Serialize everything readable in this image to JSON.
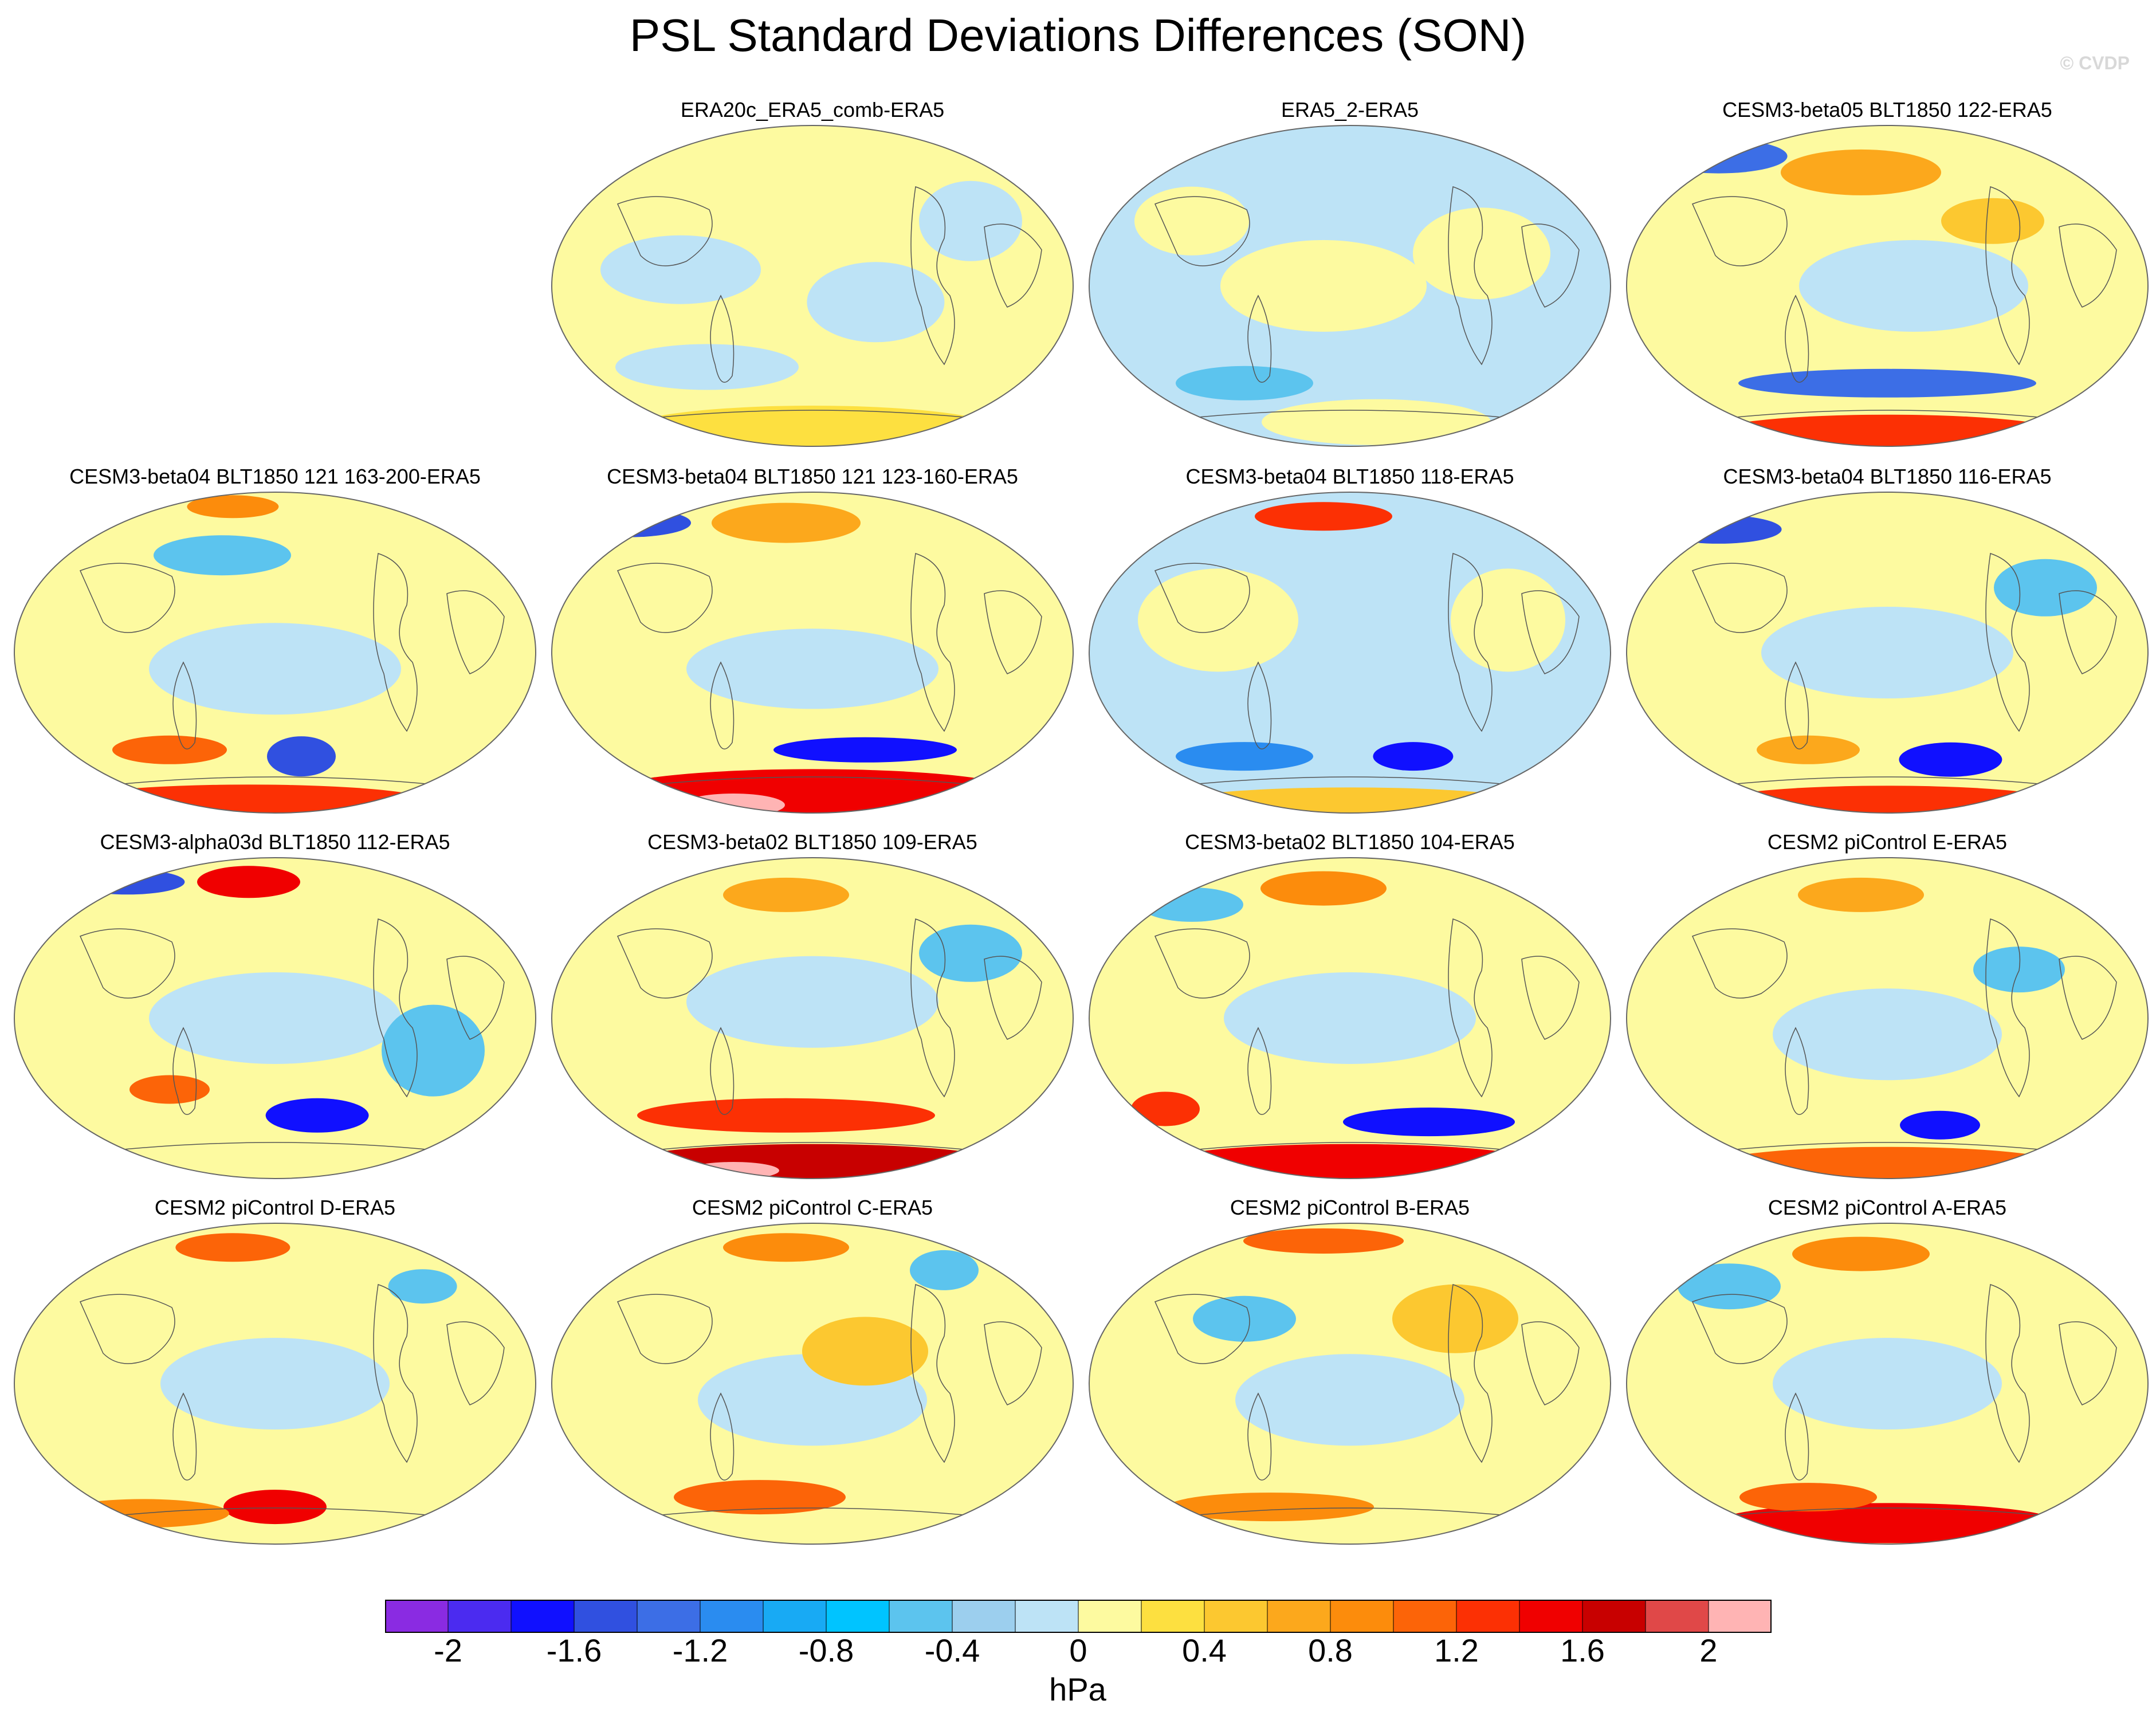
{
  "title": "PSL Standard Deviations Differences (SON)",
  "credit": "© CVDP",
  "colorbar": {
    "units": "hPa",
    "tick_labels": [
      "-2",
      "-1.6",
      "-1.2",
      "-0.8",
      "-0.4",
      "0",
      "0.4",
      "0.8",
      "1.2",
      "1.6",
      "2"
    ],
    "colors": [
      "#8a2be2",
      "#4b2bf0",
      "#1010ff",
      "#3050e0",
      "#3c6ee6",
      "#2a8cf0",
      "#18aaf4",
      "#00c4ff",
      "#5cc4ee",
      "#9ccfee",
      "#bde3f6",
      "#fdfaa0",
      "#fde040",
      "#fcc830",
      "#fca81c",
      "#fc8c0c",
      "#fc6408",
      "#fc3004",
      "#f00000",
      "#c80000",
      "#e04848",
      "#ffb4b4"
    ]
  },
  "panels": [
    {
      "title": "ERA20c_ERA5_comb-ERA5",
      "style": "era20c"
    },
    {
      "title": "ERA5_2-ERA5",
      "style": "era5"
    },
    {
      "title": "CESM3-beta05 BLT1850 122-ERA5",
      "style": "b122"
    },
    {
      "title": "CESM3-beta04 BLT1850 121 163-200-ERA5",
      "style": "b121a"
    },
    {
      "title": "CESM3-beta04 BLT1850 121 123-160-ERA5",
      "style": "b121b"
    },
    {
      "title": "CESM3-beta04 BLT1850 118-ERA5",
      "style": "b118"
    },
    {
      "title": "CESM3-beta04 BLT1850 116-ERA5",
      "style": "b116"
    },
    {
      "title": "CESM3-alpha03d BLT1850 112-ERA5",
      "style": "a112"
    },
    {
      "title": "CESM3-beta02 BLT1850 109-ERA5",
      "style": "b109"
    },
    {
      "title": "CESM3-beta02 BLT1850 104-ERA5",
      "style": "b104"
    },
    {
      "title": "CESM2 piControl E-ERA5",
      "style": "pcE"
    },
    {
      "title": "CESM2 piControl D-ERA5",
      "style": "pcD"
    },
    {
      "title": "CESM2 piControl C-ERA5",
      "style": "pcC"
    },
    {
      "title": "CESM2 piControl B-ERA5",
      "style": "pcB"
    },
    {
      "title": "CESM2 piControl A-ERA5",
      "style": "pcA"
    }
  ]
}
